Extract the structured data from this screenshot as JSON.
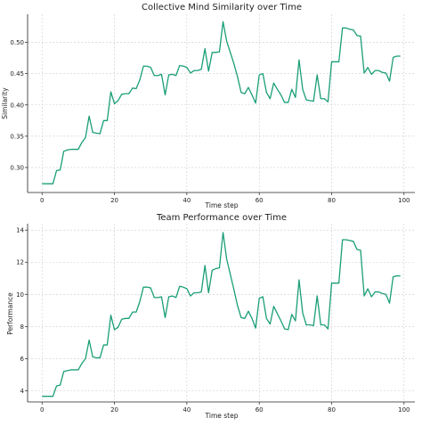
{
  "colors": {
    "line": "#1a9e77",
    "grid": "#cccccc",
    "axis": "#222222"
  },
  "chart_data": [
    {
      "type": "line",
      "title": "Collective Mind Similarity over Time",
      "xlabel": "Time step",
      "ylabel": "Similarity",
      "xlim": [
        -4,
        103
      ],
      "ylim": [
        0.26,
        0.545
      ],
      "grid": true,
      "xticks": [
        0,
        20,
        40,
        60,
        80,
        100
      ],
      "xtick_labels": [
        "0",
        "20",
        "40",
        "60",
        "80",
        "100"
      ],
      "yticks": [
        0.3,
        0.35,
        0.4,
        0.45,
        0.5
      ],
      "ytick_labels": [
        "0.30",
        "0.35",
        "0.40",
        "0.45",
        "0.50"
      ],
      "series": [
        {
          "x": [
            0,
            1,
            2,
            3,
            4,
            5,
            6,
            7,
            8,
            9,
            10,
            11,
            12,
            13,
            14,
            15,
            16,
            17,
            18,
            19,
            20,
            21,
            22,
            23,
            24,
            25,
            26,
            27,
            28,
            29,
            30,
            31,
            32,
            33,
            34,
            35,
            36,
            37,
            38,
            39,
            40,
            41,
            42,
            43,
            44,
            45,
            46,
            47,
            48,
            49,
            50,
            51,
            52,
            53,
            54,
            55,
            56,
            57,
            58,
            59,
            60,
            61,
            62,
            63,
            64,
            65,
            66,
            67,
            68,
            69,
            70,
            71,
            72,
            73,
            74,
            75,
            76,
            77,
            78,
            79,
            80,
            81,
            82,
            83,
            84,
            85,
            86,
            87,
            88,
            89,
            90,
            91,
            92,
            93,
            94,
            95,
            96,
            97,
            98,
            99
          ],
          "values": [
            0.274,
            0.274,
            0.274,
            0.274,
            0.295,
            0.296,
            0.326,
            0.328,
            0.329,
            0.329,
            0.329,
            0.34,
            0.348,
            0.382,
            0.356,
            0.355,
            0.354,
            0.375,
            0.375,
            0.421,
            0.402,
            0.407,
            0.417,
            0.418,
            0.418,
            0.427,
            0.426,
            0.44,
            0.462,
            0.462,
            0.46,
            0.447,
            0.447,
            0.449,
            0.416,
            0.448,
            0.449,
            0.447,
            0.463,
            0.462,
            0.46,
            0.451,
            0.455,
            0.455,
            0.457,
            0.49,
            0.454,
            0.484,
            0.484,
            0.485,
            0.533,
            0.502,
            0.484,
            0.466,
            0.445,
            0.42,
            0.418,
            0.428,
            0.416,
            0.403,
            0.448,
            0.45,
            0.42,
            0.41,
            0.435,
            0.425,
            0.416,
            0.404,
            0.404,
            0.425,
            0.412,
            0.472,
            0.425,
            0.408,
            0.407,
            0.406,
            0.448,
            0.41,
            0.41,
            0.405,
            0.469,
            0.469,
            0.469,
            0.523,
            0.523,
            0.521,
            0.52,
            0.511,
            0.51,
            0.451,
            0.46,
            0.449,
            0.455,
            0.455,
            0.452,
            0.451,
            0.438,
            0.476,
            0.478,
            0.478
          ]
        }
      ]
    },
    {
      "type": "line",
      "title": "Team Performance over Time",
      "xlabel": "Time step",
      "ylabel": "Performance",
      "xlim": [
        -4,
        103
      ],
      "ylim": [
        3.3,
        14.4
      ],
      "grid": true,
      "xticks": [
        0,
        20,
        40,
        60,
        80,
        100
      ],
      "xtick_labels": [
        "0",
        "20",
        "40",
        "60",
        "80",
        "100"
      ],
      "yticks": [
        4,
        6,
        8,
        10,
        12,
        14
      ],
      "ytick_labels": [
        "4",
        "6",
        "8",
        "10",
        "12",
        "14"
      ],
      "series": [
        {
          "x": [
            0,
            1,
            2,
            3,
            4,
            5,
            6,
            7,
            8,
            9,
            10,
            11,
            12,
            13,
            14,
            15,
            16,
            17,
            18,
            19,
            20,
            21,
            22,
            23,
            24,
            25,
            26,
            27,
            28,
            29,
            30,
            31,
            32,
            33,
            34,
            35,
            36,
            37,
            38,
            39,
            40,
            41,
            42,
            43,
            44,
            45,
            46,
            47,
            48,
            49,
            50,
            51,
            52,
            53,
            54,
            55,
            56,
            57,
            58,
            59,
            60,
            61,
            62,
            63,
            64,
            65,
            66,
            67,
            68,
            69,
            70,
            71,
            72,
            73,
            74,
            75,
            76,
            77,
            78,
            79,
            80,
            81,
            82,
            83,
            84,
            85,
            86,
            87,
            88,
            89,
            90,
            91,
            92,
            93,
            94,
            95,
            96,
            97,
            98,
            99
          ],
          "values": [
            3.65,
            3.65,
            3.65,
            3.65,
            4.3,
            4.35,
            5.2,
            5.25,
            5.3,
            5.3,
            5.3,
            5.7,
            6.0,
            7.15,
            6.1,
            6.05,
            6.05,
            6.85,
            6.85,
            8.7,
            7.8,
            7.95,
            8.45,
            8.5,
            8.5,
            8.9,
            8.9,
            9.55,
            10.45,
            10.45,
            10.4,
            9.8,
            9.8,
            9.85,
            8.55,
            9.85,
            9.9,
            9.8,
            10.5,
            10.45,
            10.35,
            9.9,
            10.1,
            10.1,
            10.15,
            11.8,
            10.1,
            11.5,
            11.6,
            11.65,
            13.85,
            12.2,
            11.25,
            10.3,
            9.3,
            8.55,
            8.5,
            8.95,
            8.5,
            7.9,
            9.75,
            9.85,
            8.5,
            8.15,
            9.25,
            8.8,
            8.35,
            7.85,
            7.8,
            8.75,
            8.35,
            10.9,
            8.85,
            8.1,
            8.1,
            8.05,
            9.9,
            8.1,
            8.1,
            7.85,
            10.7,
            10.7,
            10.7,
            13.4,
            13.4,
            13.35,
            13.3,
            12.8,
            12.75,
            9.9,
            10.35,
            9.85,
            10.15,
            10.15,
            10.05,
            10.0,
            9.45,
            11.1,
            11.15,
            11.15
          ]
        }
      ]
    }
  ]
}
